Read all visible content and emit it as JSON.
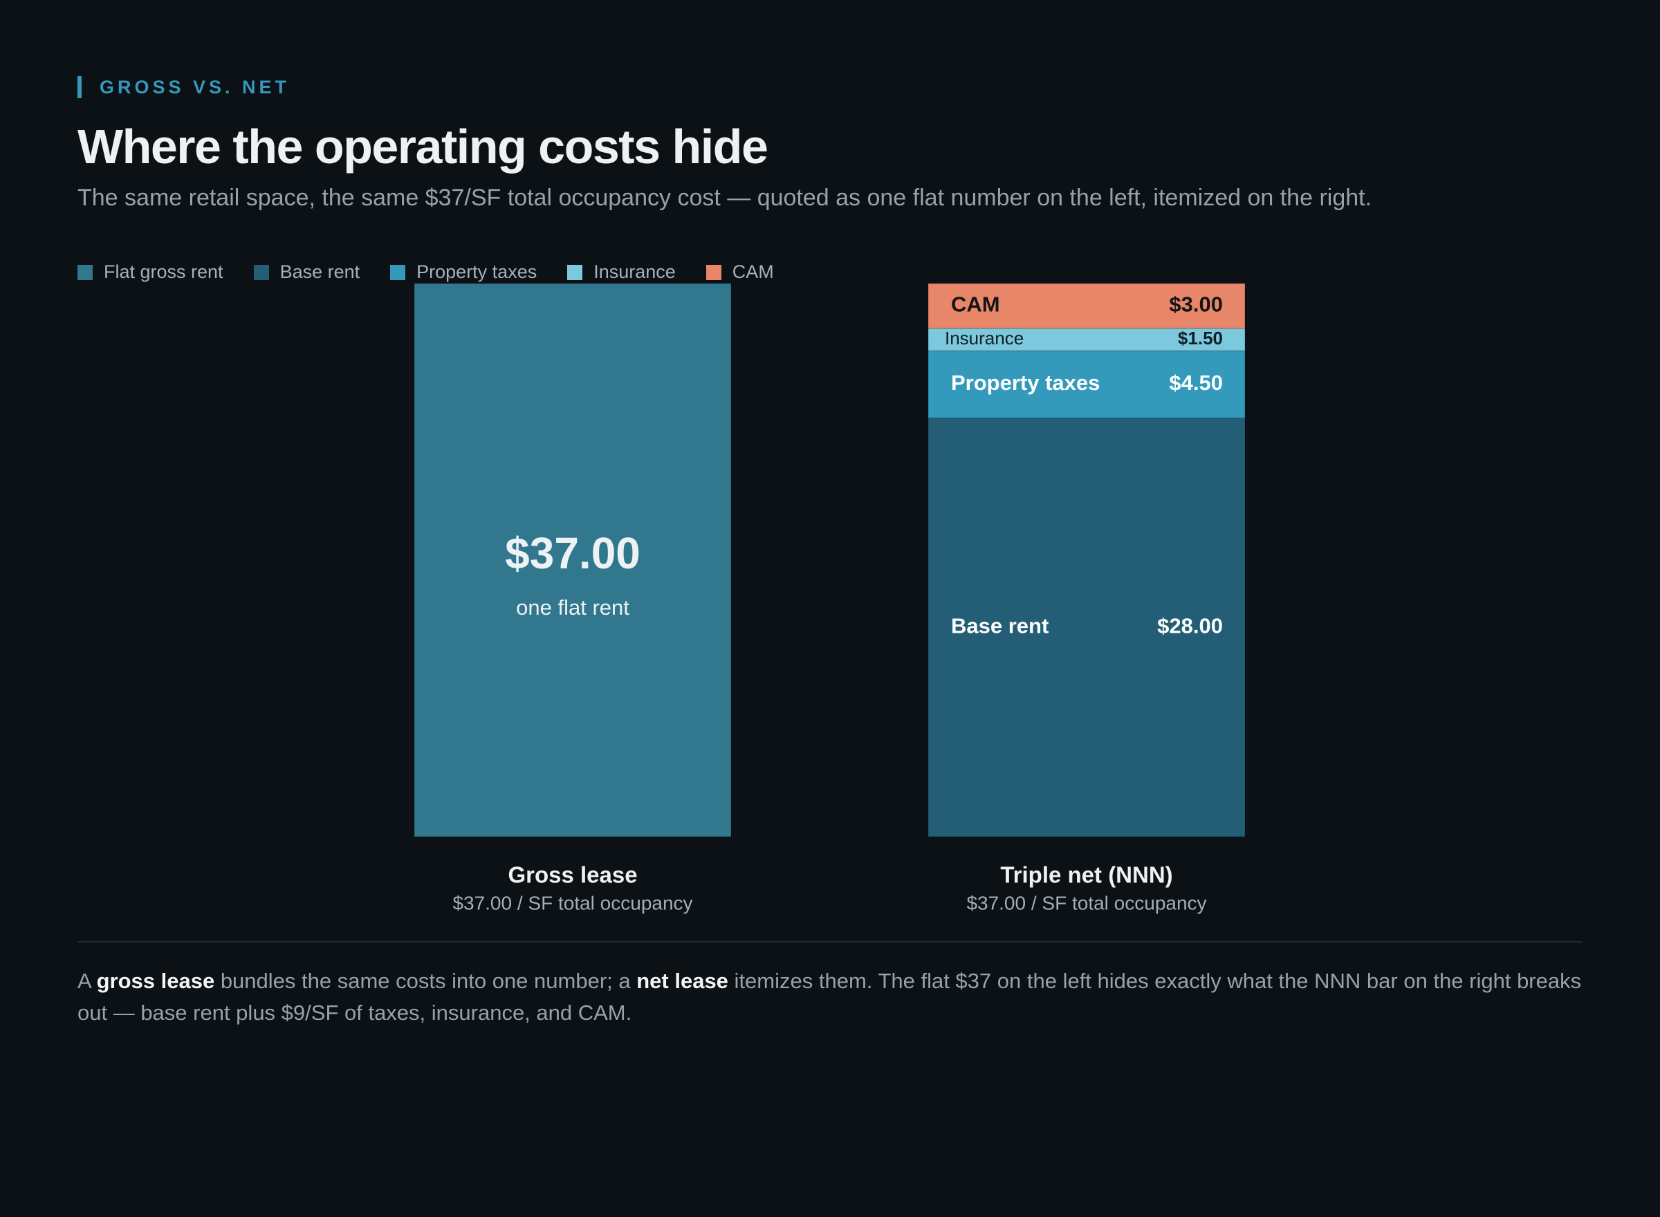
{
  "header": {
    "eyebrow": "GROSS VS. NET",
    "title": "Where the operating costs hide",
    "subtitle": "The same retail space, the same $37/SF total occupancy cost — quoted as one flat number on the left, itemized on the right."
  },
  "legend": [
    {
      "label": "Flat gross rent",
      "color": "#31788f"
    },
    {
      "label": "Base rent",
      "color": "#245e76"
    },
    {
      "label": "Property taxes",
      "color": "#349abc"
    },
    {
      "label": "Insurance",
      "color": "#7cc8dd"
    },
    {
      "label": "CAM",
      "color": "#e8866a"
    }
  ],
  "chart_data": {
    "type": "bar",
    "stacked": true,
    "categories": [
      "Gross lease",
      "Triple net (NNN)"
    ],
    "category_subtitles": [
      "$37.00 / SF total occupancy",
      "$37.00 / SF total occupancy"
    ],
    "series": [
      {
        "name": "Flat gross rent",
        "color": "#31788f",
        "values": [
          37.0,
          0
        ],
        "labels": [
          "$37.00",
          ""
        ],
        "note": "one flat rent"
      },
      {
        "name": "Base rent",
        "color": "#245e76",
        "values": [
          0,
          28.0
        ],
        "labels": [
          "",
          "$28.00"
        ],
        "label_color": "#ffffff"
      },
      {
        "name": "Property taxes",
        "color": "#349abc",
        "values": [
          0,
          4.5
        ],
        "labels": [
          "",
          "$4.50"
        ],
        "label_color": "#ffffff"
      },
      {
        "name": "Insurance",
        "color": "#7cc8dd",
        "values": [
          0,
          1.5
        ],
        "labels": [
          "",
          "$1.50"
        ],
        "label_color": "#0f1d26"
      },
      {
        "name": "CAM",
        "color": "#e8866a",
        "values": [
          0,
          3.0
        ],
        "labels": [
          "",
          "$3.00"
        ],
        "label_color": "#141414"
      }
    ],
    "ylim": [
      0,
      37
    ],
    "grid": false,
    "legend_position": "top-left"
  },
  "footnote": {
    "p1": "A ",
    "b1": "gross lease",
    "p2": " bundles the same costs into one number; a ",
    "b2": "net lease",
    "p3": " itemizes them. The flat $37 on the left hides exactly what the NNN bar on the right breaks out — base rent plus $9/SF of taxes, insurance, and CAM."
  }
}
